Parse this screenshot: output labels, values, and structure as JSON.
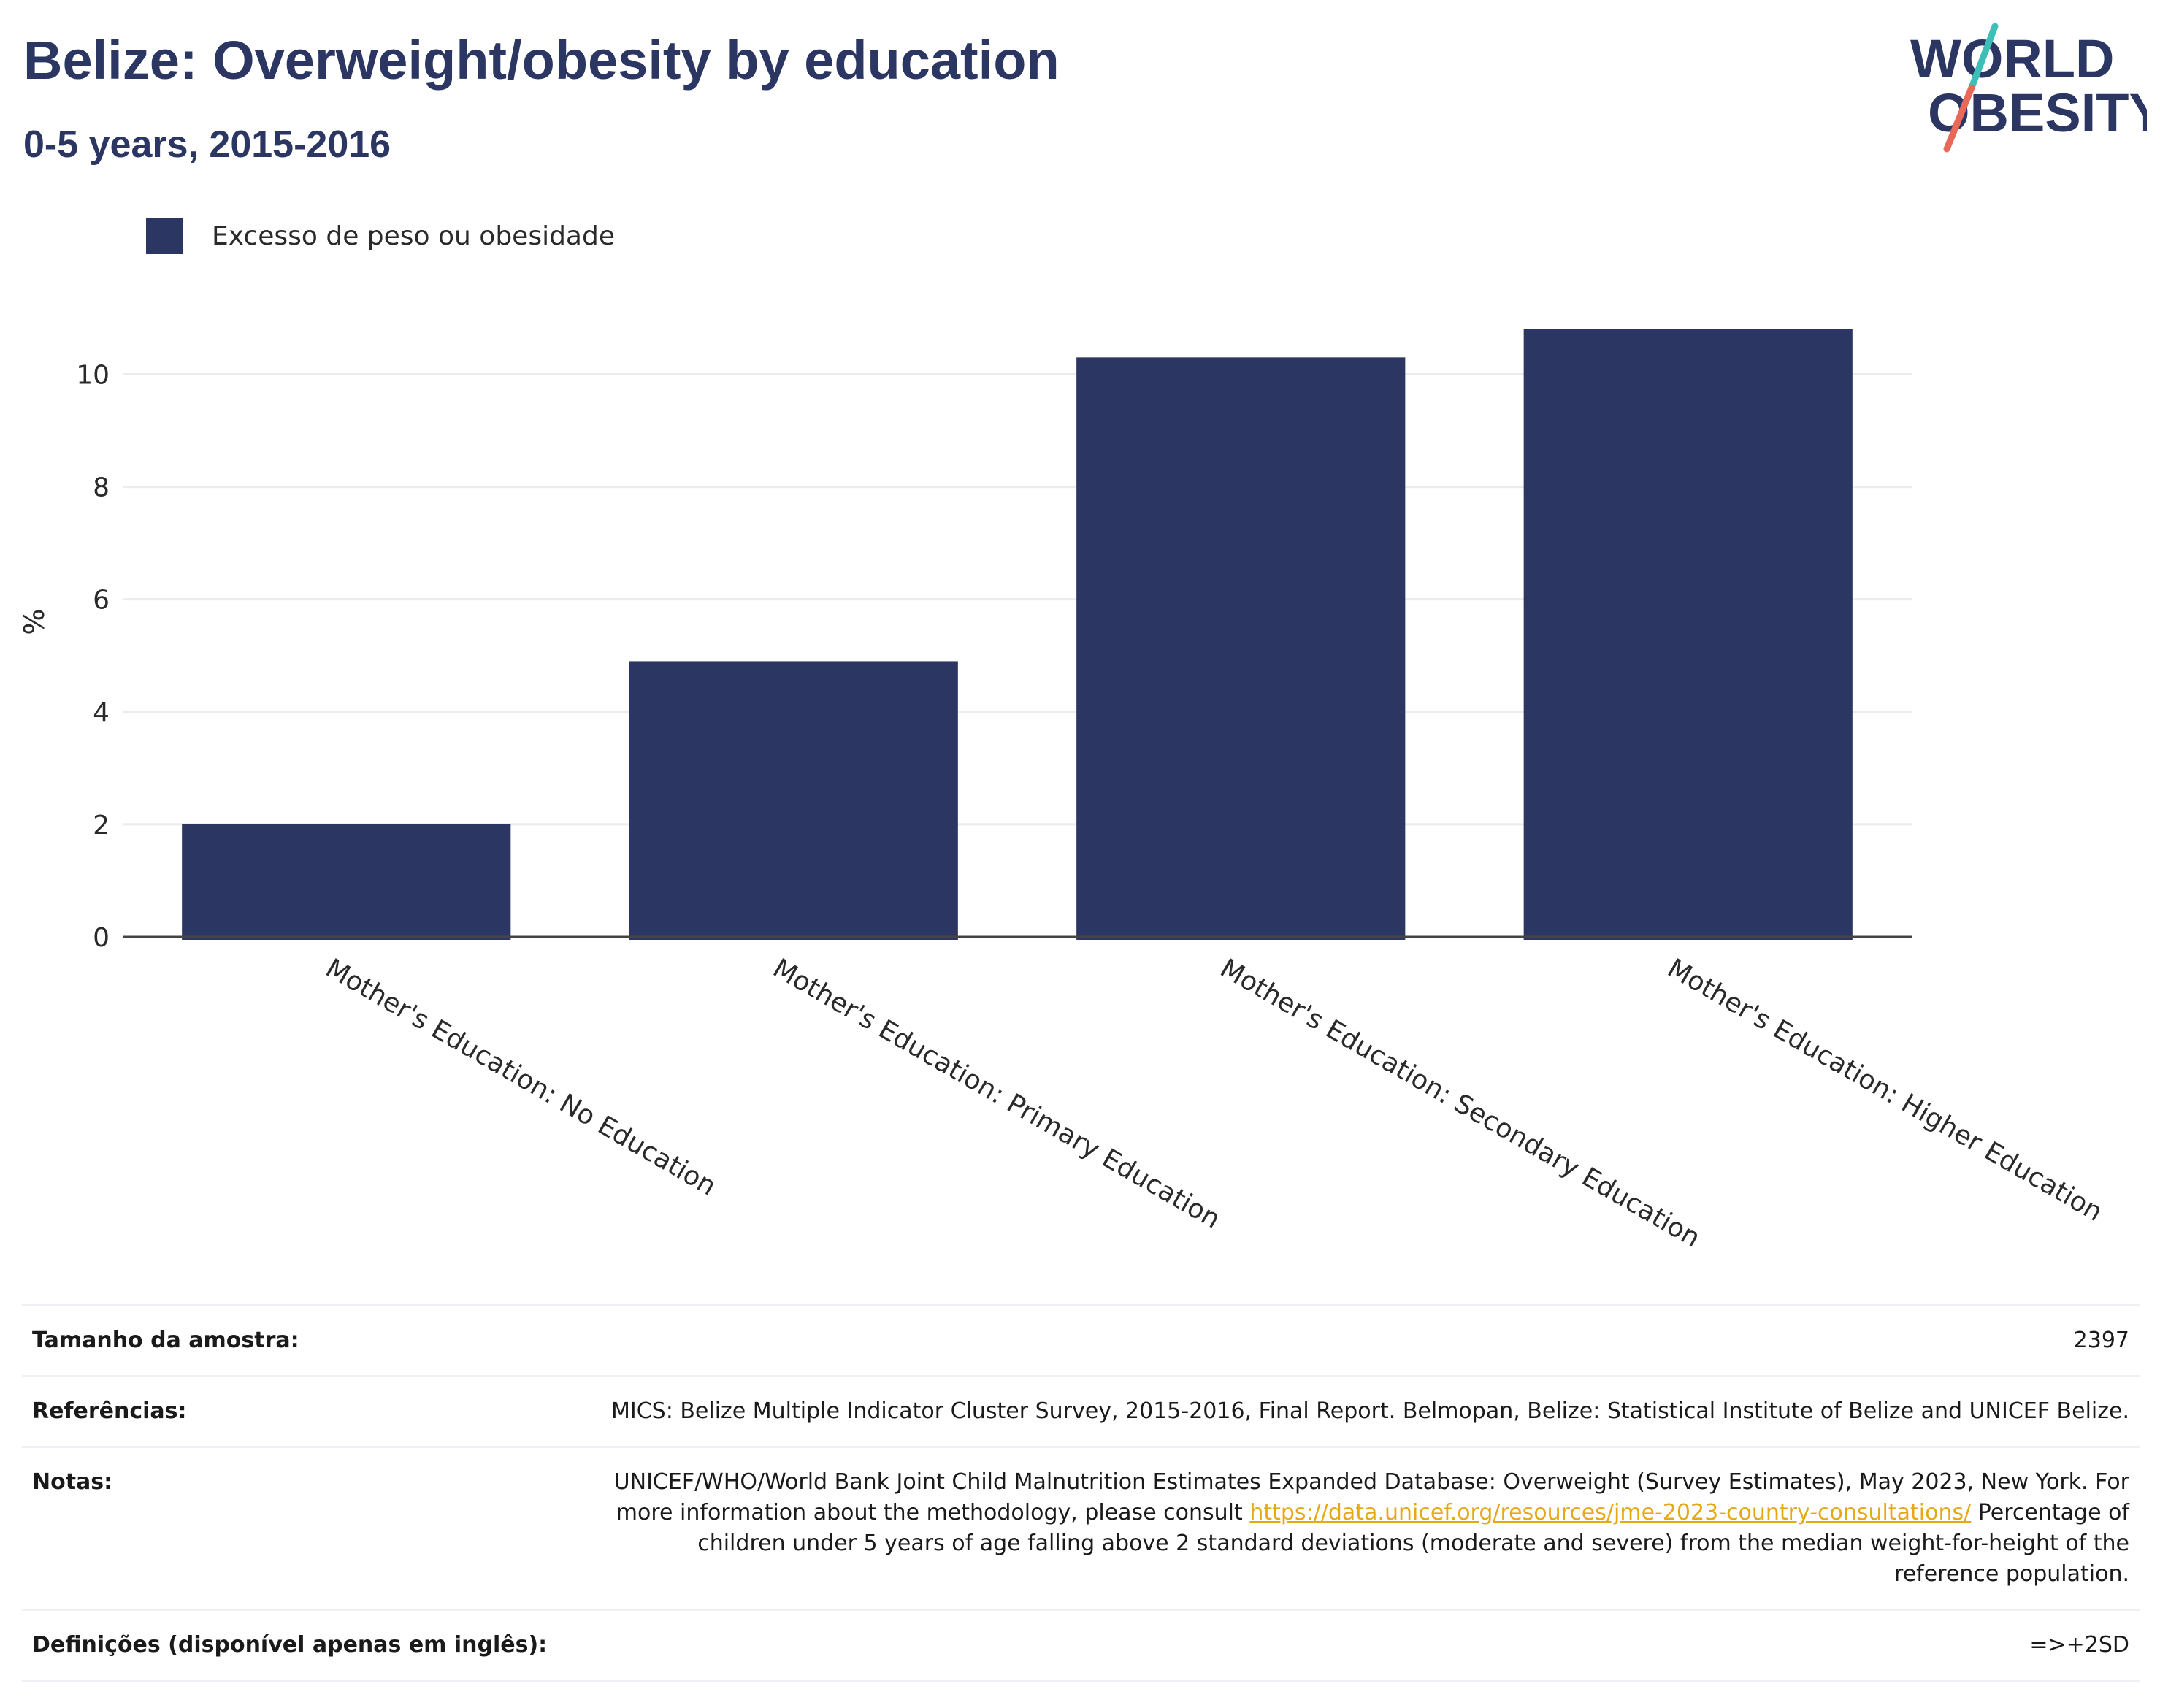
{
  "header": {
    "title": "Belize: Overweight/obesity by education",
    "subtitle": "0-5 years, 2015-2016"
  },
  "logo": {
    "line1": "WORLD",
    "line2": "OBESITY",
    "colors": {
      "navy": "#2b3762",
      "teal": "#3dbfb8",
      "coral": "#e8685a"
    }
  },
  "legend": {
    "label": "Excesso de peso ou obesidade",
    "color": "#2b3762"
  },
  "chart_data": {
    "type": "bar",
    "title": "Belize: Overweight/obesity by education",
    "subtitle": "0-5 years, 2015-2016",
    "xlabel": "",
    "ylabel": "%",
    "categories": [
      "Mother's Education: No Education",
      "Mother's Education: Primary Education",
      "Mother's Education: Secondary Education",
      "Mother's Education: Higher Education"
    ],
    "series": [
      {
        "name": "Excesso de peso ou obesidade",
        "values": [
          2.0,
          4.9,
          10.3,
          10.8
        ],
        "color": "#2b3762"
      }
    ],
    "ylim": [
      0,
      11.2
    ],
    "yticks": [
      0,
      2,
      4,
      6,
      8,
      10
    ],
    "grid": true,
    "legend_position": "top-left"
  },
  "info": {
    "sample_size_label": "Tamanho da amostra:",
    "sample_size_value": "2397",
    "references_label": "Referências:",
    "references_value": "MICS: Belize Multiple Indicator Cluster Survey, 2015-2016, Final Report. Belmopan, Belize: Statistical Institute of Belize and UNICEF Belize.",
    "notes_label": "Notas:",
    "notes_text_before": "UNICEF/WHO/World Bank Joint Child Malnutrition Estimates Expanded Database: Overweight (Survey Estimates), May 2023, New York. For more information about the methodology, please consult ",
    "notes_link": "https://data.unicef.org/resources/jme-2023-country-consultations/",
    "notes_text_after": " Percentage of children under 5 years of age falling above 2 standard deviations (moderate and severe) from the median weight-for-height of the reference population.",
    "definitions_label": "Definições (disponível apenas em inglês):",
    "definitions_value": "=>+2SD"
  }
}
